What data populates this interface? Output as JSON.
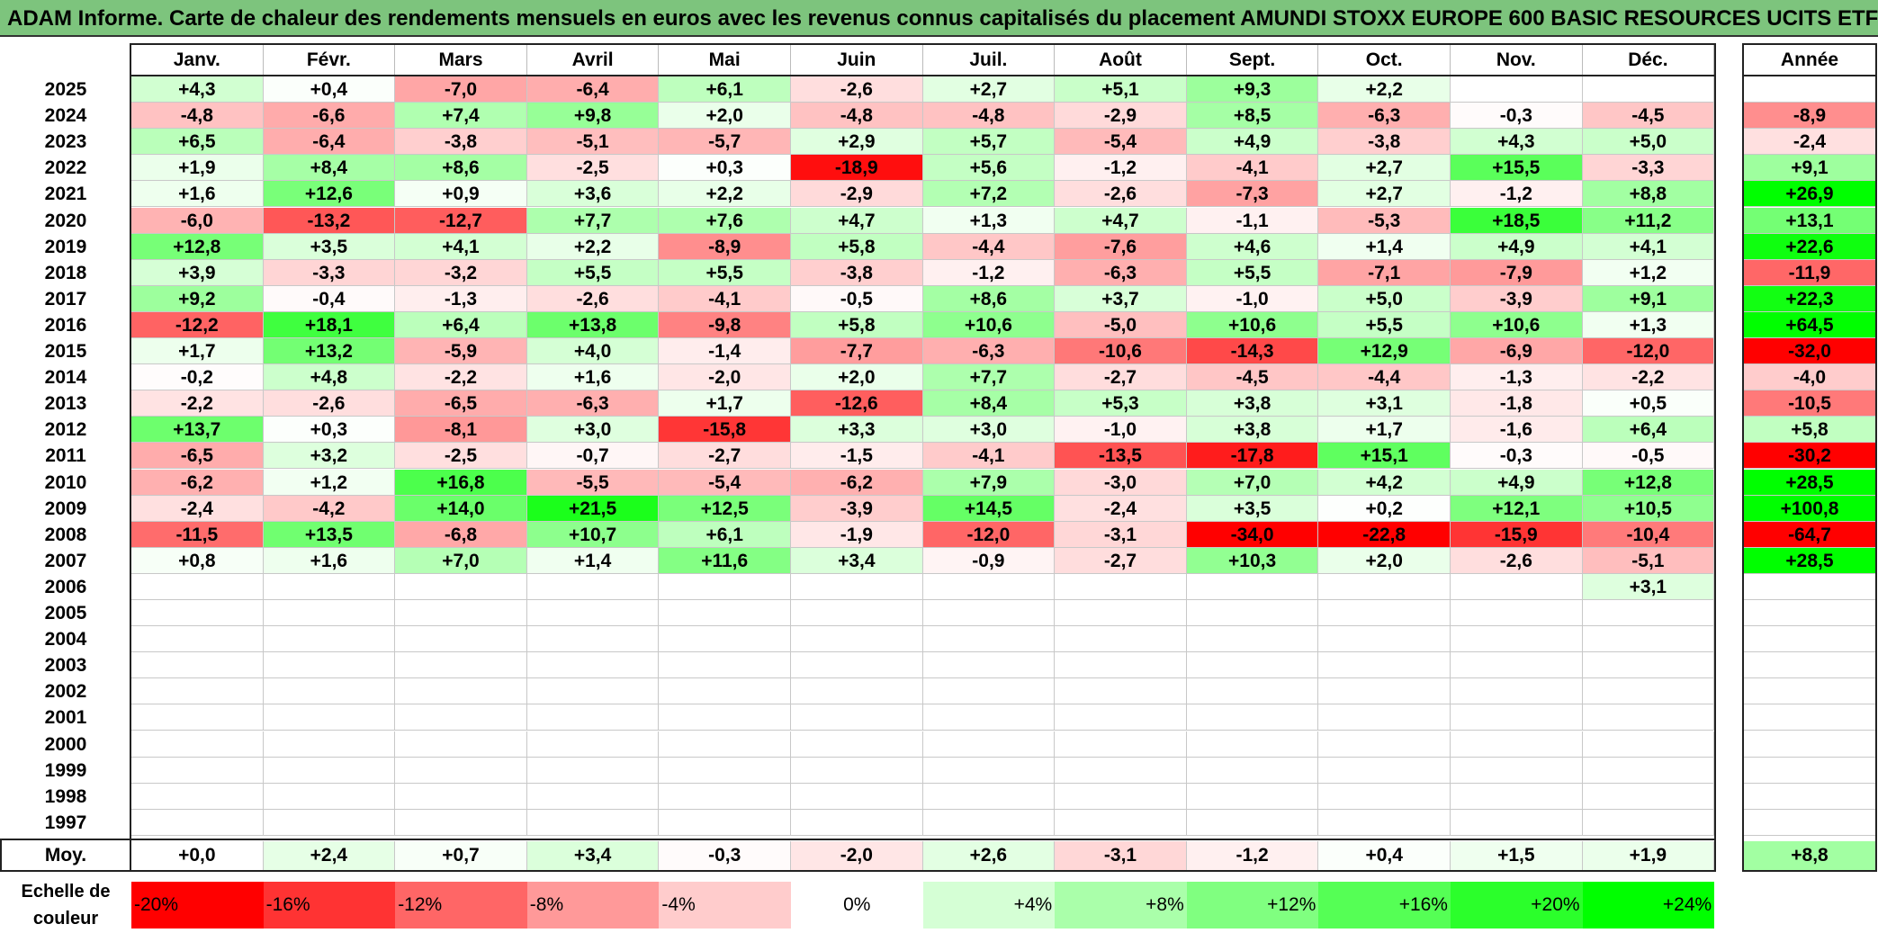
{
  "title": "ADAM Informe. Carte de chaleur des rendements mensuels en euros avec les revenus connus capitalisés du placement AMUNDI STOXX EUROPE 600 BASIC RESOURCES UCITS ETF",
  "chart_data": {
    "type": "heatmap",
    "months": [
      "Janv.",
      "Févr.",
      "Mars",
      "Avril",
      "Mai",
      "Juin",
      "Juil.",
      "Août",
      "Sept.",
      "Oct.",
      "Nov.",
      "Déc."
    ],
    "annual_header": "Année",
    "rows": [
      {
        "year": "2025",
        "values": [
          "+4,3",
          "+0,4",
          "-7,0",
          "-6,4",
          "+6,1",
          "-2,6",
          "+2,7",
          "+5,1",
          "+9,3",
          "+2,2",
          "",
          ""
        ],
        "annual": ""
      },
      {
        "year": "2024",
        "values": [
          "-4,8",
          "-6,6",
          "+7,4",
          "+9,8",
          "+2,0",
          "-4,8",
          "-4,8",
          "-2,9",
          "+8,5",
          "-6,3",
          "-0,3",
          "-4,5"
        ],
        "annual": "-8,9"
      },
      {
        "year": "2023",
        "values": [
          "+6,5",
          "-6,4",
          "-3,8",
          "-5,1",
          "-5,7",
          "+2,9",
          "+5,7",
          "-5,4",
          "+4,9",
          "-3,8",
          "+4,3",
          "+5,0"
        ],
        "annual": "-2,4"
      },
      {
        "year": "2022",
        "values": [
          "+1,9",
          "+8,4",
          "+8,6",
          "-2,5",
          "+0,3",
          "-18,9",
          "+5,6",
          "-1,2",
          "-4,1",
          "+2,7",
          "+15,5",
          "-3,3"
        ],
        "annual": "+9,1"
      },
      {
        "year": "2021",
        "values": [
          "+1,6",
          "+12,6",
          "+0,9",
          "+3,6",
          "+2,2",
          "-2,9",
          "+7,2",
          "-2,6",
          "-7,3",
          "+2,7",
          "-1,2",
          "+8,8"
        ],
        "annual": "+26,9"
      },
      {
        "year": "2020",
        "values": [
          "-6,0",
          "-13,2",
          "-12,7",
          "+7,7",
          "+7,6",
          "+4,7",
          "+1,3",
          "+4,7",
          "-1,1",
          "-5,3",
          "+18,5",
          "+11,2"
        ],
        "annual": "+13,1"
      },
      {
        "year": "2019",
        "values": [
          "+12,8",
          "+3,5",
          "+4,1",
          "+2,2",
          "-8,9",
          "+5,8",
          "-4,4",
          "-7,6",
          "+4,6",
          "+1,4",
          "+4,9",
          "+4,1"
        ],
        "annual": "+22,6"
      },
      {
        "year": "2018",
        "values": [
          "+3,9",
          "-3,3",
          "-3,2",
          "+5,5",
          "+5,5",
          "-3,8",
          "-1,2",
          "-6,3",
          "+5,5",
          "-7,1",
          "-7,9",
          "+1,2"
        ],
        "annual": "-11,9"
      },
      {
        "year": "2017",
        "values": [
          "+9,2",
          "-0,4",
          "-1,3",
          "-2,6",
          "-4,1",
          "-0,5",
          "+8,6",
          "+3,7",
          "-1,0",
          "+5,0",
          "-3,9",
          "+9,1"
        ],
        "annual": "+22,3"
      },
      {
        "year": "2016",
        "values": [
          "-12,2",
          "+18,1",
          "+6,4",
          "+13,8",
          "-9,8",
          "+5,8",
          "+10,6",
          "-5,0",
          "+10,6",
          "+5,5",
          "+10,6",
          "+1,3"
        ],
        "annual": "+64,5"
      },
      {
        "year": "2015",
        "values": [
          "+1,7",
          "+13,2",
          "-5,9",
          "+4,0",
          "-1,4",
          "-7,7",
          "-6,3",
          "-10,6",
          "-14,3",
          "+12,9",
          "-6,9",
          "-12,0"
        ],
        "annual": "-32,0"
      },
      {
        "year": "2014",
        "values": [
          "-0,2",
          "+4,8",
          "-2,2",
          "+1,6",
          "-2,0",
          "+2,0",
          "+7,7",
          "-2,7",
          "-4,5",
          "-4,4",
          "-1,3",
          "-2,2"
        ],
        "annual": "-4,0"
      },
      {
        "year": "2013",
        "values": [
          "-2,2",
          "-2,6",
          "-6,5",
          "-6,3",
          "+1,7",
          "-12,6",
          "+8,4",
          "+5,3",
          "+3,8",
          "+3,1",
          "-1,8",
          "+0,5"
        ],
        "annual": "-10,5"
      },
      {
        "year": "2012",
        "values": [
          "+13,7",
          "+0,3",
          "-8,1",
          "+3,0",
          "-15,8",
          "+3,3",
          "+3,0",
          "-1,0",
          "+3,8",
          "+1,7",
          "-1,6",
          "+6,4"
        ],
        "annual": "+5,8"
      },
      {
        "year": "2011",
        "values": [
          "-6,5",
          "+3,2",
          "-2,5",
          "-0,7",
          "-2,7",
          "-1,5",
          "-4,1",
          "-13,5",
          "-17,8",
          "+15,1",
          "-0,3",
          "-0,5"
        ],
        "annual": "-30,2"
      },
      {
        "year": "2010",
        "values": [
          "-6,2",
          "+1,2",
          "+16,8",
          "-5,5",
          "-5,4",
          "-6,2",
          "+7,9",
          "-3,0",
          "+7,0",
          "+4,2",
          "+4,9",
          "+12,8"
        ],
        "annual": "+28,5"
      },
      {
        "year": "2009",
        "values": [
          "-2,4",
          "-4,2",
          "+14,0",
          "+21,5",
          "+12,5",
          "-3,9",
          "+14,5",
          "-2,4",
          "+3,5",
          "+0,2",
          "+12,1",
          "+10,5"
        ],
        "annual": "+100,8"
      },
      {
        "year": "2008",
        "values": [
          "-11,5",
          "+13,5",
          "-6,8",
          "+10,7",
          "+6,1",
          "-1,9",
          "-12,0",
          "-3,1",
          "-34,0",
          "-22,8",
          "-15,9",
          "-10,4"
        ],
        "annual": "-64,7"
      },
      {
        "year": "2007",
        "values": [
          "+0,8",
          "+1,6",
          "+7,0",
          "+1,4",
          "+11,6",
          "+3,4",
          "-0,9",
          "-2,7",
          "+10,3",
          "+2,0",
          "-2,6",
          "-5,1"
        ],
        "annual": "+28,5"
      },
      {
        "year": "2006",
        "values": [
          "",
          "",
          "",
          "",
          "",
          "",
          "",
          "",
          "",
          "",
          "",
          "+3,1"
        ],
        "annual": ""
      },
      {
        "year": "2005",
        "values": [
          "",
          "",
          "",
          "",
          "",
          "",
          "",
          "",
          "",
          "",
          "",
          ""
        ],
        "annual": ""
      },
      {
        "year": "2004",
        "values": [
          "",
          "",
          "",
          "",
          "",
          "",
          "",
          "",
          "",
          "",
          "",
          ""
        ],
        "annual": ""
      },
      {
        "year": "2003",
        "values": [
          "",
          "",
          "",
          "",
          "",
          "",
          "",
          "",
          "",
          "",
          "",
          ""
        ],
        "annual": ""
      },
      {
        "year": "2002",
        "values": [
          "",
          "",
          "",
          "",
          "",
          "",
          "",
          "",
          "",
          "",
          "",
          ""
        ],
        "annual": ""
      },
      {
        "year": "2001",
        "values": [
          "",
          "",
          "",
          "",
          "",
          "",
          "",
          "",
          "",
          "",
          "",
          ""
        ],
        "annual": ""
      },
      {
        "year": "2000",
        "values": [
          "",
          "",
          "",
          "",
          "",
          "",
          "",
          "",
          "",
          "",
          "",
          ""
        ],
        "annual": ""
      },
      {
        "year": "1999",
        "values": [
          "",
          "",
          "",
          "",
          "",
          "",
          "",
          "",
          "",
          "",
          "",
          ""
        ],
        "annual": ""
      },
      {
        "year": "1998",
        "values": [
          "",
          "",
          "",
          "",
          "",
          "",
          "",
          "",
          "",
          "",
          "",
          ""
        ],
        "annual": ""
      },
      {
        "year": "1997",
        "values": [
          "",
          "",
          "",
          "",
          "",
          "",
          "",
          "",
          "",
          "",
          "",
          ""
        ],
        "annual": ""
      }
    ],
    "average": {
      "label": "Moy.",
      "values": [
        "+0,0",
        "+2,4",
        "+0,7",
        "+3,4",
        "-0,3",
        "-2,0",
        "+2,6",
        "-3,1",
        "-1,2",
        "+0,4",
        "+1,5",
        "+1,9"
      ],
      "annual": "+8,8"
    },
    "legend": {
      "label_line1": "Echelle de",
      "label_line2": "couleur",
      "steps": [
        {
          "label": "-20%",
          "value": -20
        },
        {
          "label": "-16%",
          "value": -16
        },
        {
          "label": "-12%",
          "value": -12
        },
        {
          "label": "-8%",
          "value": -8
        },
        {
          "label": "-4%",
          "value": -4
        },
        {
          "label": "0%",
          "value": 0
        },
        {
          "label": "+4%",
          "value": 4
        },
        {
          "label": "+8%",
          "value": 8
        },
        {
          "label": "+12%",
          "value": 12
        },
        {
          "label": "+16%",
          "value": 16
        },
        {
          "label": "+20%",
          "value": 20
        },
        {
          "label": "+24%",
          "value": 24
        }
      ]
    },
    "colors": {
      "negative": "#ff0000",
      "neutral": "#ffffff",
      "positive": "#00ff00"
    }
  }
}
